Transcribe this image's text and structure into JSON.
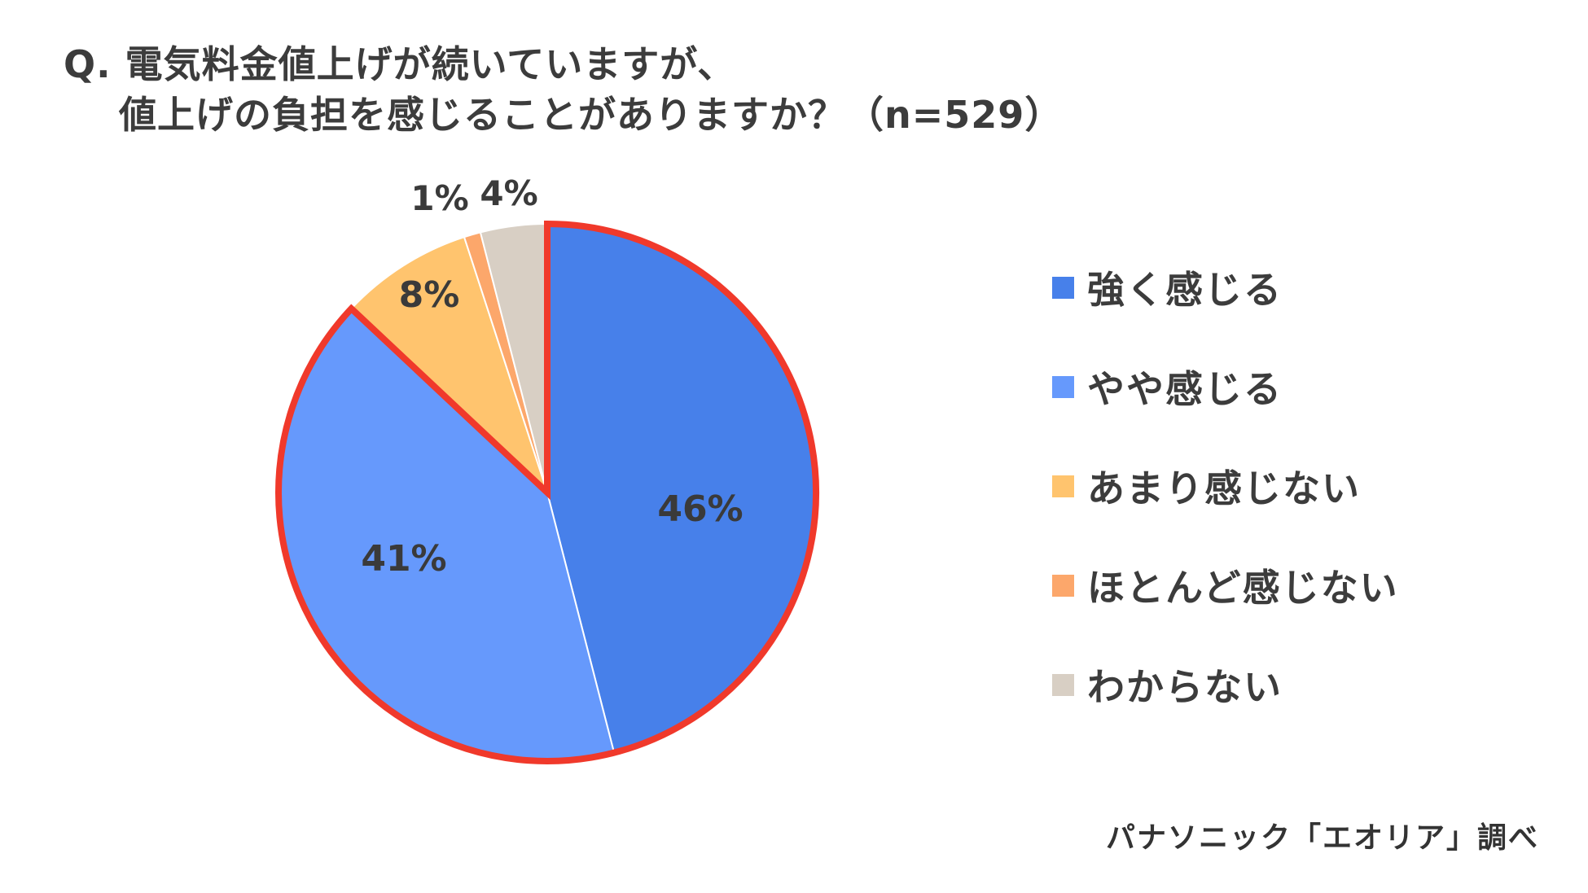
{
  "title": {
    "line1": "Q. 電気料金値上げが続いていますが、",
    "line2": "値上げの負担を感じることがありますか？（n=529）"
  },
  "source": "パナソニック「エオリア」調べ",
  "chart_data": {
    "type": "pie",
    "title": "Q. 電気料金値上げが続いていますが、値上げの負担を感じることがありますか？（n=529）",
    "unit": "%",
    "start": "12 o'clock, clockwise",
    "highlight": "強く感じる + やや感じる (red outline)",
    "highlight_color": "#f0392b",
    "legend_position": "right",
    "slices": [
      {
        "label": "強く感じる",
        "value": 46,
        "display": "46%",
        "color": "#4780ea"
      },
      {
        "label": "やや感じる",
        "value": 41,
        "display": "41%",
        "color": "#6699fc"
      },
      {
        "label": "あまり感じない",
        "value": 8,
        "display": "8%",
        "color": "#ffc46e"
      },
      {
        "label": "ほとんど感じない",
        "value": 1,
        "display": "1%",
        "color": "#fca76b"
      },
      {
        "label": "わからない",
        "value": 4,
        "display": "4%",
        "color": "#d8cfc4"
      }
    ]
  }
}
